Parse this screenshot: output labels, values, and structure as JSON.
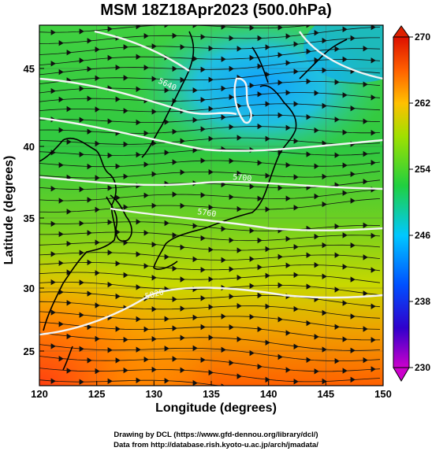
{
  "title": "MSM 18Z18Apr2023 (500.0hPa)",
  "credit_line1": "Drawing by DCL (https://www.gfd-dennou.org/library/dcl/)",
  "credit_line2": "Data from http://database.rish.kyoto-u.ac.jp/arch/jmadata/",
  "map": {
    "xlabel": "Longitude (degrees)",
    "ylabel": "Latitude  (degrees)",
    "x_ticks": [
      "120",
      "125",
      "130",
      "135",
      "140",
      "145",
      "150"
    ],
    "y_ticks": [
      "25",
      "30",
      "35",
      "40",
      "45"
    ],
    "lon_range": [
      120,
      150
    ],
    "lat_range": [
      22.5,
      47.6
    ],
    "contour_labels": [
      "5640",
      "5700",
      "5760",
      "5820"
    ],
    "colorbar": {
      "ticks": [
        "270",
        "262",
        "254",
        "246",
        "238",
        "230"
      ],
      "range": [
        230,
        270
      ],
      "colors": [
        "#cc00cc",
        "#0000cc",
        "#0080ff",
        "#00d0ff",
        "#20d040",
        "#c0e000",
        "#ffa000",
        "#ff4000",
        "#cc0000"
      ]
    }
  }
}
